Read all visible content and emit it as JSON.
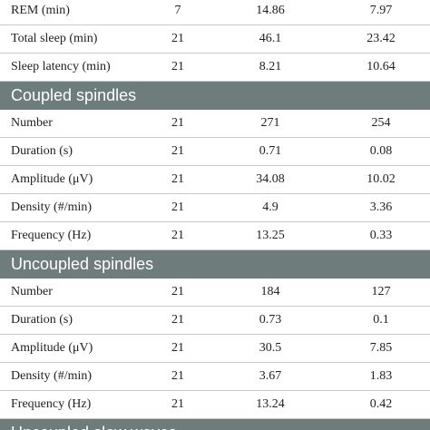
{
  "table": {
    "rows": [
      [
        "REM (min)",
        7,
        14.86,
        7.97
      ],
      [
        "Total sleep (min)",
        21,
        46.1,
        23.42
      ],
      [
        "Sleep latency (min)",
        21,
        8.21,
        10.64
      ]
    ],
    "sections": [
      {
        "title": "Coupled spindles",
        "rows": [
          [
            "Number",
            21,
            271,
            254
          ],
          [
            "Duration (s)",
            21,
            0.71,
            0.08
          ],
          [
            "Amplitude (μV)",
            21,
            34.08,
            10.02
          ],
          [
            "Density (#/min)",
            21,
            4.9,
            3.36
          ],
          [
            "Frequency (Hz)",
            21,
            13.25,
            0.33
          ]
        ]
      },
      {
        "title": "Uncoupled spindles",
        "rows": [
          [
            "Number",
            21,
            184,
            127
          ],
          [
            "Duration (s)",
            21,
            0.73,
            0.1
          ],
          [
            "Amplitude (μV)",
            21,
            30.5,
            7.85
          ],
          [
            "Density (#/min)",
            21,
            3.67,
            1.83
          ],
          [
            "Frequency (Hz)",
            21,
            13.24,
            0.42
          ]
        ]
      },
      {
        "title": "Uncoupled slow waves",
        "rows": []
      }
    ]
  }
}
